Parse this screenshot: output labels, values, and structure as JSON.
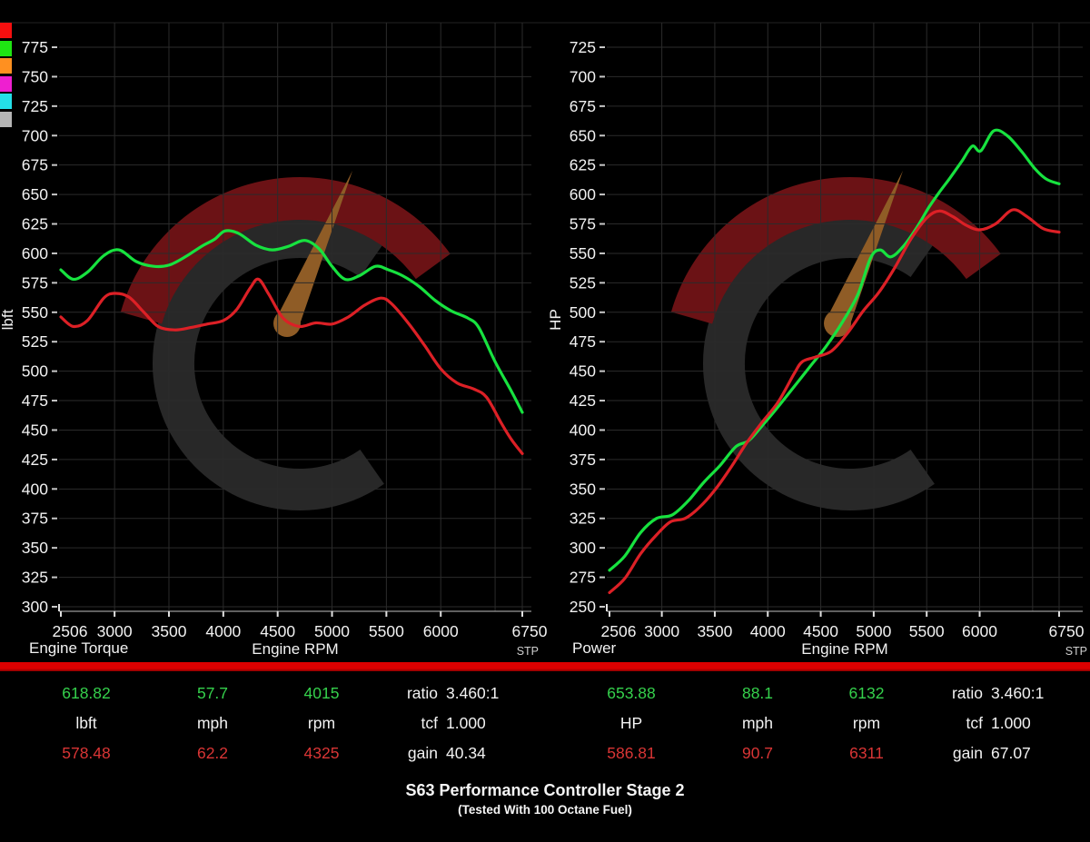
{
  "legend": {
    "swatch_colors": [
      "#f50f0f",
      "#1fe513",
      "#ff9020",
      "#ee1fd0",
      "#24dfe8",
      "#b5b5b5"
    ]
  },
  "colors": {
    "background": "#000000",
    "grid": "#2b2b2b",
    "top_border": "#222222",
    "axis_line": "#9a9a9a",
    "tick": "#e0e0e0",
    "text": "#f2f2f2",
    "stp_text": "#cfcfcf",
    "divider": "#dd0000",
    "green_value": "#35d14c",
    "red_value": "#d93535"
  },
  "watermark": {
    "ring": "#282828",
    "arc": "#6b1215",
    "needle": "#8f5c26"
  },
  "chart_data": [
    {
      "type": "line",
      "title": "Engine Torque",
      "xlabel": "Engine RPM",
      "ylabel": "lbft",
      "corner_note": "STP",
      "xlim": [
        2506,
        6750
      ],
      "ylim": [
        300,
        775
      ],
      "ytick_step": 25,
      "xticks": [
        2506,
        3000,
        3500,
        4000,
        4500,
        5000,
        5500,
        6000,
        6750
      ],
      "grid": true,
      "legend_position": "none",
      "series": [
        {
          "name": "green",
          "color": "#17e23f",
          "points": [
            [
              2506,
              586
            ],
            [
              2620,
              578
            ],
            [
              2750,
              584
            ],
            [
              2900,
              598
            ],
            [
              3040,
              603
            ],
            [
              3200,
              593
            ],
            [
              3360,
              589
            ],
            [
              3500,
              590
            ],
            [
              3650,
              597
            ],
            [
              3800,
              606
            ],
            [
              3920,
              612
            ],
            [
              4015,
              619
            ],
            [
              4140,
              617
            ],
            [
              4300,
              607
            ],
            [
              4450,
              603
            ],
            [
              4600,
              606
            ],
            [
              4750,
              611
            ],
            [
              4880,
              604
            ],
            [
              5000,
              589
            ],
            [
              5120,
              578
            ],
            [
              5250,
              581
            ],
            [
              5400,
              589
            ],
            [
              5520,
              586
            ],
            [
              5650,
              581
            ],
            [
              5800,
              572
            ],
            [
              5950,
              560
            ],
            [
              6100,
              551
            ],
            [
              6250,
              545
            ],
            [
              6350,
              537
            ],
            [
              6500,
              508
            ],
            [
              6650,
              483
            ],
            [
              6750,
              465
            ]
          ]
        },
        {
          "name": "red",
          "color": "#dc2026",
          "points": [
            [
              2506,
              546
            ],
            [
              2620,
              538
            ],
            [
              2750,
              543
            ],
            [
              2900,
              562
            ],
            [
              3000,
              566
            ],
            [
              3130,
              563
            ],
            [
              3270,
              550
            ],
            [
              3400,
              538
            ],
            [
              3550,
              535
            ],
            [
              3700,
              537
            ],
            [
              3850,
              540
            ],
            [
              4000,
              543
            ],
            [
              4120,
              552
            ],
            [
              4250,
              571
            ],
            [
              4325,
              578
            ],
            [
              4420,
              565
            ],
            [
              4550,
              545
            ],
            [
              4700,
              538
            ],
            [
              4850,
              541
            ],
            [
              5000,
              540
            ],
            [
              5150,
              546
            ],
            [
              5300,
              556
            ],
            [
              5450,
              562
            ],
            [
              5550,
              557
            ],
            [
              5700,
              541
            ],
            [
              5850,
              522
            ],
            [
              6000,
              502
            ],
            [
              6150,
              490
            ],
            [
              6300,
              485
            ],
            [
              6420,
              478
            ],
            [
              6550,
              457
            ],
            [
              6650,
              442
            ],
            [
              6750,
              430
            ]
          ]
        }
      ]
    },
    {
      "type": "line",
      "title": "Power",
      "xlabel": "Engine RPM",
      "ylabel": "HP",
      "corner_note": "STP",
      "xlim": [
        2506,
        6750
      ],
      "ylim": [
        250,
        725
      ],
      "ytick_step": 25,
      "xticks": [
        2506,
        3000,
        3500,
        4000,
        4500,
        5000,
        5500,
        6000,
        6750
      ],
      "grid": true,
      "legend_position": "none",
      "series": [
        {
          "name": "green",
          "color": "#17e23f",
          "points": [
            [
              2506,
              281
            ],
            [
              2650,
              293
            ],
            [
              2800,
              313
            ],
            [
              2950,
              325
            ],
            [
              3100,
              328
            ],
            [
              3250,
              340
            ],
            [
              3400,
              356
            ],
            [
              3550,
              370
            ],
            [
              3700,
              386
            ],
            [
              3820,
              391
            ],
            [
              3950,
              404
            ],
            [
              4100,
              420
            ],
            [
              4250,
              437
            ],
            [
              4400,
              454
            ],
            [
              4550,
              471
            ],
            [
              4700,
              491
            ],
            [
              4850,
              515
            ],
            [
              4970,
              546
            ],
            [
              5060,
              553
            ],
            [
              5160,
              547
            ],
            [
              5280,
              556
            ],
            [
              5400,
              571
            ],
            [
              5520,
              589
            ],
            [
              5620,
              602
            ],
            [
              5720,
              614
            ],
            [
              5830,
              628
            ],
            [
              5930,
              641
            ],
            [
              6010,
              637
            ],
            [
              6132,
              654
            ],
            [
              6260,
              650
            ],
            [
              6400,
              636
            ],
            [
              6520,
              622
            ],
            [
              6630,
              613
            ],
            [
              6750,
              609
            ]
          ]
        },
        {
          "name": "red",
          "color": "#dc2026",
          "points": [
            [
              2506,
              262
            ],
            [
              2650,
              274
            ],
            [
              2800,
              295
            ],
            [
              2950,
              311
            ],
            [
              3080,
              322
            ],
            [
              3220,
              325
            ],
            [
              3350,
              334
            ],
            [
              3500,
              349
            ],
            [
              3650,
              368
            ],
            [
              3800,
              389
            ],
            [
              3950,
              407
            ],
            [
              4100,
              424
            ],
            [
              4250,
              448
            ],
            [
              4325,
              458
            ],
            [
              4450,
              462
            ],
            [
              4600,
              467
            ],
            [
              4750,
              482
            ],
            [
              4900,
              501
            ],
            [
              5050,
              517
            ],
            [
              5200,
              538
            ],
            [
              5350,
              562
            ],
            [
              5500,
              580
            ],
            [
              5620,
              586
            ],
            [
              5750,
              581
            ],
            [
              5870,
              574
            ],
            [
              6000,
              570
            ],
            [
              6150,
              575
            ],
            [
              6311,
              587
            ],
            [
              6450,
              581
            ],
            [
              6600,
              571
            ],
            [
              6750,
              568
            ]
          ]
        }
      ]
    }
  ],
  "stats": {
    "torque": {
      "peak": [
        "618.82",
        "57.7",
        "4015"
      ],
      "units": [
        "lbft",
        "mph",
        "rpm"
      ],
      "base": [
        "578.48",
        "62.2",
        "4325"
      ],
      "ratio_label": "ratio",
      "ratio_value": "3.460:1",
      "tcf_label": "tcf",
      "tcf_value": "1.000",
      "gain_label": "gain",
      "gain_value": "40.34"
    },
    "power": {
      "peak": [
        "653.88",
        "88.1",
        "6132"
      ],
      "units": [
        "HP",
        "mph",
        "rpm"
      ],
      "base": [
        "586.81",
        "90.7",
        "6311"
      ],
      "ratio_label": "ratio",
      "ratio_value": "3.460:1",
      "tcf_label": "tcf",
      "tcf_value": "1.000",
      "gain_label": "gain",
      "gain_value": "67.07"
    }
  },
  "footer": {
    "title": "S63 Performance Controller Stage 2",
    "subtitle": "(Tested With 100 Octane Fuel)"
  }
}
